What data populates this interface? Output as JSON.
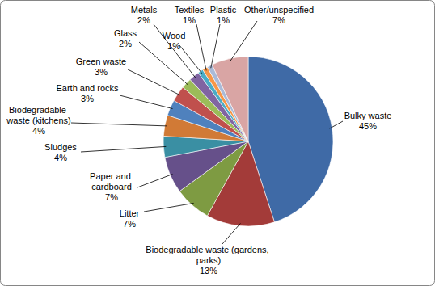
{
  "chart_data": {
    "type": "pie",
    "categories": [
      "Bulky waste",
      "Biodegradable waste (gardens, parks)",
      "Litter",
      "Paper and cardboard",
      "Sludges",
      "Biodegradable waste (kitchens)",
      "Earth and rocks",
      "Green waste",
      "Glass",
      "Metals",
      "Wood",
      "Textiles",
      "Plastic",
      "Other/unspecified"
    ],
    "values": [
      45,
      13,
      7,
      7,
      4,
      4,
      3,
      3,
      2,
      2,
      1,
      1,
      1,
      7
    ],
    "value_labels": [
      "45%",
      "13%",
      "7%",
      "7%",
      "4%",
      "4%",
      "3%",
      "3%",
      "2%",
      "2%",
      "1%",
      "1%",
      "1%",
      "7%"
    ],
    "colors": [
      "#3F6AA6",
      "#A33B39",
      "#7E9B42",
      "#66508A",
      "#3A8FA3",
      "#D17A36",
      "#4F81BD",
      "#C0504D",
      "#9BBB59",
      "#8064A2",
      "#4BACC6",
      "#F79646",
      "#AABAD7",
      "#D9A5A4"
    ],
    "data_labels": true
  }
}
